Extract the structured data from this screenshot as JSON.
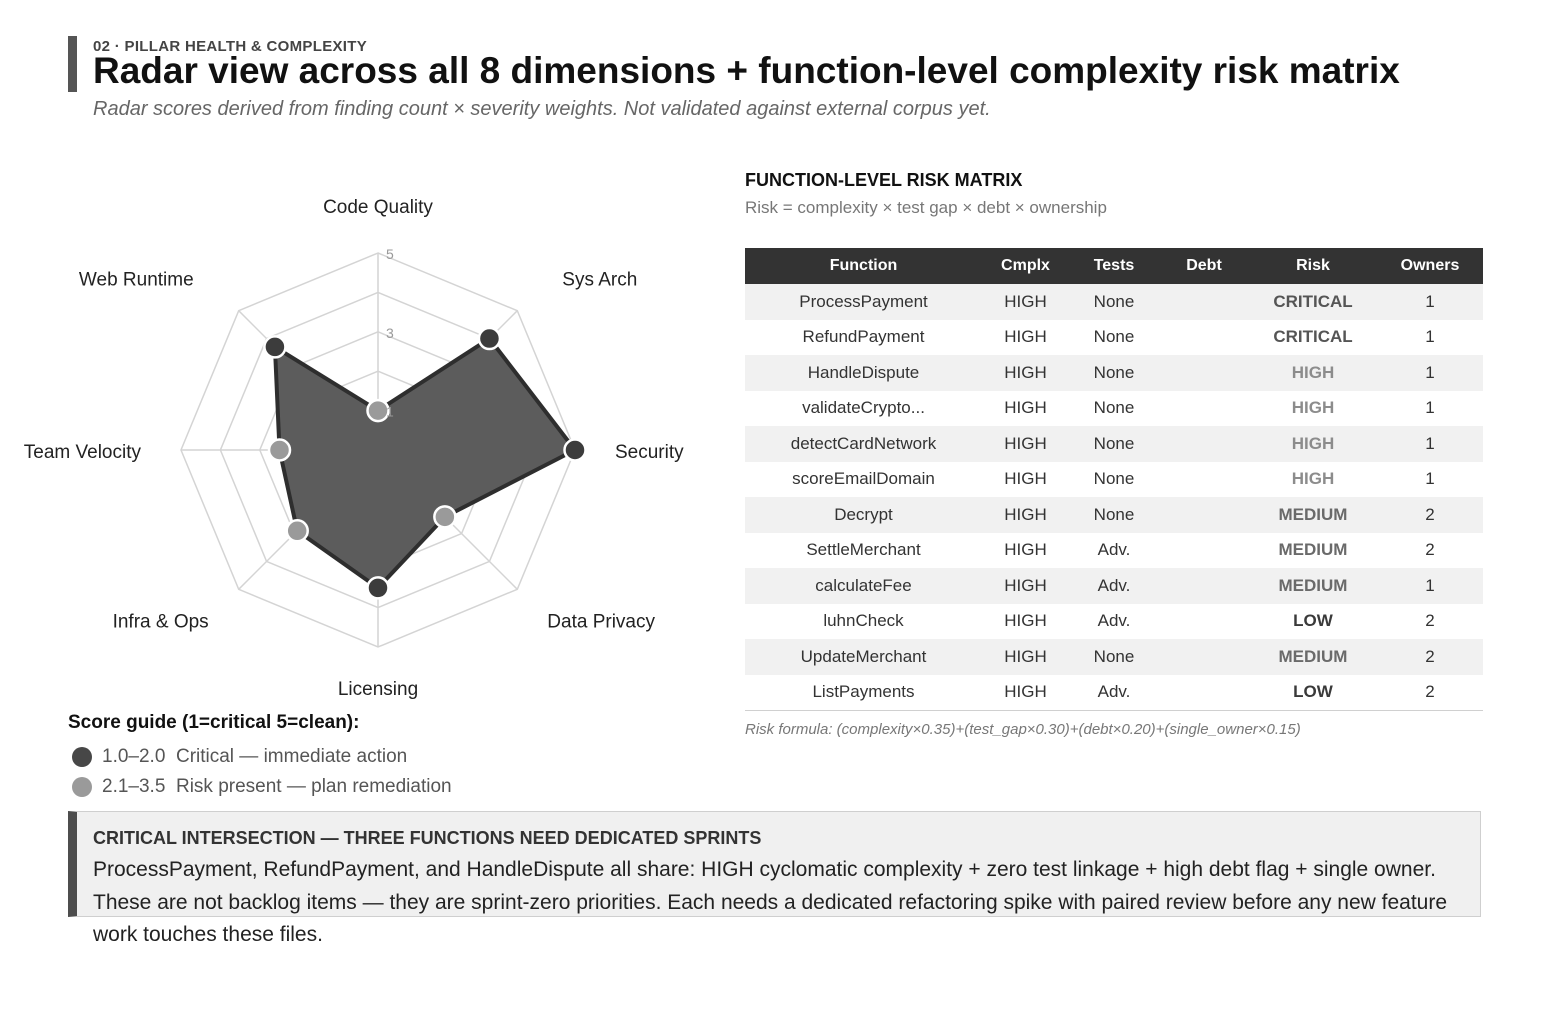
{
  "header": {
    "eyebrow": "02 · PILLAR HEALTH & COMPLEXITY",
    "title": "Radar view across all 8 dimensions + function-level complexity risk matrix",
    "subtitle": "Radar scores derived from finding count × severity weights. Not validated against external corpus yet."
  },
  "chart_data": {
    "type": "radar",
    "axes": [
      "Code Quality",
      "Sys Arch",
      "Security",
      "Data Privacy",
      "Licensing",
      "Infra & Ops",
      "Team Velocity",
      "Web Runtime"
    ],
    "values": [
      1.0,
      4.0,
      5.0,
      2.4,
      3.5,
      2.9,
      2.5,
      3.7
    ],
    "range": [
      0,
      5
    ],
    "ticks": [
      "1",
      "3",
      "5"
    ],
    "tick_values": [
      1,
      3,
      5
    ],
    "grid": true,
    "colors": {
      "fill": "#5c5c5c",
      "stroke": "#2e2e2e",
      "critical": "#3c3c3c",
      "risk": "#9a9a9a",
      "grid": "#d4d4d4"
    }
  },
  "score_guide": {
    "title": "Score guide (1=critical  5=clean):",
    "items": [
      {
        "range": "1.0–2.0",
        "label": "Critical — immediate action",
        "color": "#474747"
      },
      {
        "range": "2.1–3.5",
        "label": "Risk present — plan remediation",
        "color": "#9a9a9a"
      }
    ]
  },
  "matrix": {
    "title": "FUNCTION-LEVEL RISK MATRIX",
    "subtitle": "Risk = complexity × test gap × debt × ownership",
    "columns": [
      "Function",
      "Cmplx",
      "Tests",
      "Debt",
      "Risk",
      "Owners"
    ],
    "rows": [
      [
        "ProcessPayment",
        "HIGH",
        "None",
        "",
        "CRITICAL",
        "1"
      ],
      [
        "RefundPayment",
        "HIGH",
        "None",
        "",
        "CRITICAL",
        "1"
      ],
      [
        "HandleDispute",
        "HIGH",
        "None",
        "",
        "HIGH",
        "1"
      ],
      [
        "validateCrypto...",
        "HIGH",
        "None",
        "",
        "HIGH",
        "1"
      ],
      [
        "detectCardNetwork",
        "HIGH",
        "None",
        "",
        "HIGH",
        "1"
      ],
      [
        "scoreEmailDomain",
        "HIGH",
        "None",
        "",
        "HIGH",
        "1"
      ],
      [
        "Decrypt",
        "HIGH",
        "None",
        "",
        "MEDIUM",
        "2"
      ],
      [
        "SettleMerchant",
        "HIGH",
        "Adv.",
        "",
        "MEDIUM",
        "2"
      ],
      [
        "calculateFee",
        "HIGH",
        "Adv.",
        "",
        "MEDIUM",
        "1"
      ],
      [
        "luhnCheck",
        "HIGH",
        "Adv.",
        "",
        "LOW",
        "2"
      ],
      [
        "UpdateMerchant",
        "HIGH",
        "None",
        "",
        "MEDIUM",
        "2"
      ],
      [
        "ListPayments",
        "HIGH",
        "Adv.",
        "",
        "LOW",
        "2"
      ]
    ],
    "risk_colors": {
      "CRITICAL": "#555555",
      "HIGH": "#8c8c8c",
      "MEDIUM": "#6a6a6a",
      "LOW": "#3a3a3a"
    },
    "formula": "Risk formula: (complexity×0.35)+(test_gap×0.30)+(debt×0.20)+(single_owner×0.15)"
  },
  "callout": {
    "title": "CRITICAL INTERSECTION — THREE FUNCTIONS NEED DEDICATED SPRINTS",
    "body": "ProcessPayment, RefundPayment, and HandleDispute all share: HIGH cyclomatic complexity + zero test linkage + high debt flag + single owner. These are not backlog items — they are sprint-zero priorities. Each needs a dedicated refactoring spike with paired review before any new feature work touches these files."
  }
}
